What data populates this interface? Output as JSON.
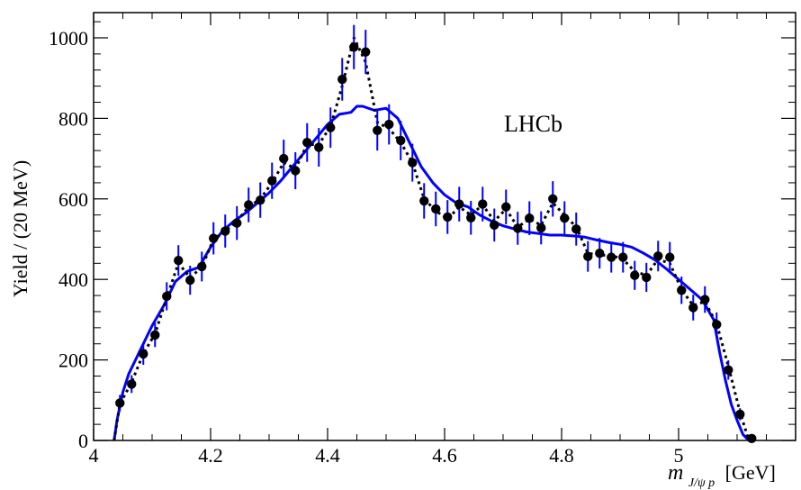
{
  "chart_data": {
    "type": "scatter",
    "title": "",
    "annotation": "LHCb",
    "xlabel_main": "m",
    "xlabel_sub": "J/ψ p",
    "xlabel_unit": "[GeV]",
    "ylabel": "Yield / (20 MeV)",
    "xlim": [
      4.0,
      5.2
    ],
    "ylim": [
      0,
      1050
    ],
    "x_ticks": [
      4,
      4.2,
      4.4,
      4.6,
      4.8,
      5
    ],
    "x_tick_labels": [
      "4",
      "4.2",
      "4.4",
      "4.6",
      "4.8",
      "5"
    ],
    "y_ticks": [
      0,
      200,
      400,
      600,
      800,
      1000
    ],
    "y_tick_labels": [
      "0",
      "200",
      "400",
      "600",
      "800",
      "1000"
    ],
    "grid": false,
    "colors": {
      "data": "#000000",
      "error_bar": "#0000ff",
      "fit": "#0000ff",
      "dotted": "#000000"
    },
    "series": [
      {
        "kind": "points",
        "x": [
          4.045,
          4.065,
          4.085,
          4.105,
          4.125,
          4.145,
          4.165,
          4.185,
          4.205,
          4.225,
          4.245,
          4.265,
          4.285,
          4.305,
          4.325,
          4.345,
          4.365,
          4.385,
          4.405,
          4.425,
          4.445,
          4.465,
          4.485,
          4.505,
          4.525,
          4.545,
          4.565,
          4.585,
          4.605,
          4.625,
          4.645,
          4.665,
          4.685,
          4.705,
          4.725,
          4.745,
          4.765,
          4.785,
          4.805,
          4.825,
          4.845,
          4.865,
          4.885,
          4.905,
          4.925,
          4.945,
          4.965,
          4.985,
          5.005,
          5.025,
          5.045,
          5.065,
          5.085,
          5.105,
          5.125
        ],
        "y": [
          93,
          140,
          215,
          262,
          358,
          447,
          398,
          432,
          502,
          520,
          540,
          585,
          597,
          645,
          700,
          670,
          740,
          728,
          777,
          897,
          977,
          965,
          770,
          785,
          745,
          690,
          595,
          575,
          555,
          587,
          553,
          587,
          535,
          580,
          527,
          552,
          528,
          600,
          552,
          525,
          457,
          465,
          455,
          455,
          410,
          405,
          458,
          455,
          373,
          330,
          350,
          288,
          175,
          65,
          5
        ],
        "err": [
          20,
          22,
          27,
          30,
          35,
          38,
          36,
          37,
          40,
          41,
          42,
          43,
          44,
          45,
          47,
          46,
          48,
          48,
          50,
          53,
          55,
          55,
          50,
          50,
          49,
          47,
          44,
          43,
          42,
          43,
          42,
          43,
          41,
          43,
          41,
          42,
          41,
          44,
          42,
          41,
          38,
          38,
          38,
          38,
          36,
          36,
          38,
          38,
          34,
          32,
          33,
          30,
          24,
          15,
          5
        ]
      },
      {
        "kind": "fit-solid",
        "x": [
          4.035,
          4.04,
          4.05,
          4.06,
          4.08,
          4.1,
          4.12,
          4.14,
          4.16,
          4.18,
          4.2,
          4.22,
          4.24,
          4.26,
          4.28,
          4.3,
          4.32,
          4.34,
          4.36,
          4.38,
          4.4,
          4.42,
          4.44,
          4.45,
          4.46,
          4.48,
          4.5,
          4.52,
          4.54,
          4.56,
          4.58,
          4.6,
          4.62,
          4.64,
          4.66,
          4.68,
          4.7,
          4.72,
          4.74,
          4.76,
          4.78,
          4.8,
          4.82,
          4.84,
          4.86,
          4.88,
          4.9,
          4.92,
          4.94,
          4.96,
          4.98,
          5.0,
          5.02,
          5.04,
          5.06,
          5.07,
          5.08,
          5.09,
          5.1,
          5.11,
          5.12
        ],
        "y": [
          0,
          50,
          120,
          165,
          225,
          285,
          335,
          395,
          420,
          430,
          480,
          520,
          545,
          565,
          590,
          615,
          645,
          680,
          715,
          750,
          785,
          810,
          815,
          830,
          830,
          820,
          825,
          800,
          740,
          680,
          640,
          610,
          590,
          580,
          560,
          545,
          533,
          525,
          518,
          514,
          510,
          510,
          508,
          505,
          498,
          492,
          487,
          480,
          465,
          448,
          425,
          400,
          375,
          350,
          300,
          220,
          150,
          90,
          50,
          15,
          0
        ]
      },
      {
        "kind": "fit-dotted",
        "x": [
          4.035,
          4.045,
          4.065,
          4.085,
          4.105,
          4.125,
          4.145,
          4.165,
          4.185,
          4.205,
          4.225,
          4.245,
          4.265,
          4.285,
          4.305,
          4.325,
          4.345,
          4.365,
          4.385,
          4.405,
          4.425,
          4.445,
          4.465,
          4.485,
          4.505,
          4.525,
          4.545,
          4.565,
          4.585,
          4.605,
          4.625,
          4.645,
          4.665,
          4.685,
          4.705,
          4.725,
          4.745,
          4.765,
          4.785,
          4.805,
          4.825,
          4.845,
          4.865,
          4.885,
          4.905,
          4.925,
          4.945,
          4.965,
          4.985,
          5.005,
          5.025,
          5.045,
          5.065,
          5.085,
          5.105,
          5.12
        ],
        "y": [
          0,
          90,
          145,
          215,
          265,
          355,
          440,
          405,
          430,
          500,
          520,
          545,
          580,
          600,
          640,
          690,
          675,
          735,
          735,
          780,
          880,
          1000,
          940,
          790,
          775,
          740,
          690,
          600,
          570,
          550,
          580,
          560,
          585,
          545,
          575,
          530,
          550,
          535,
          590,
          560,
          530,
          465,
          460,
          460,
          450,
          420,
          410,
          450,
          440,
          375,
          335,
          345,
          290,
          185,
          70,
          0
        ]
      }
    ]
  }
}
